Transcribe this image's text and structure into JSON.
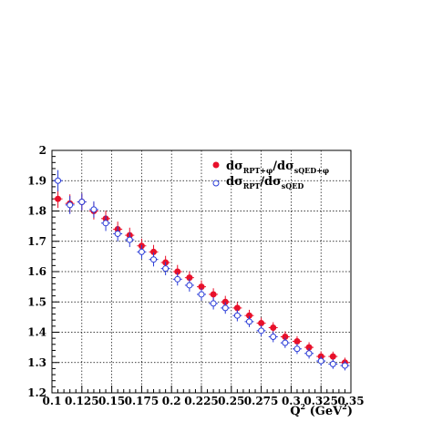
{
  "chart_data": {
    "type": "scatter",
    "x_axis": {
      "range": [
        0.1,
        0.35
      ],
      "ticks": [
        0.1,
        0.125,
        0.15,
        0.175,
        0.2,
        0.225,
        0.25,
        0.275,
        0.3,
        0.325,
        0.35
      ],
      "tick_labels": [
        "0.1",
        "0.125",
        "0.15",
        "0.175",
        "0.2",
        "0.225",
        "0.25",
        "0.275",
        "0.3",
        "0.325",
        "0.35"
      ],
      "label": {
        "base": "Q",
        "sup1": "2",
        "mid": " (GeV",
        "sup2": "2",
        "end": ")"
      }
    },
    "y_axis": {
      "range": [
        1.2,
        2.0
      ],
      "ticks": [
        1.2,
        1.3,
        1.4,
        1.5,
        1.6,
        1.7,
        1.8,
        1.9,
        2.0
      ],
      "tick_labels": [
        "1.2",
        "1.3",
        "1.4",
        "1.5",
        "1.6",
        "1.7",
        "1.8",
        "1.9",
        "2"
      ]
    },
    "grid": true,
    "legend_position": "top-right",
    "series": [
      {
        "legend": {
          "p1": "dσ",
          "s1": "RPT+φ",
          "p2": "/dσ",
          "s2": "sQED+φ"
        },
        "marker": "filled-circle",
        "color": "#e8102a",
        "errcolor": "#e8102a",
        "x": [
          0.105,
          0.115,
          0.125,
          0.135,
          0.145,
          0.155,
          0.165,
          0.175,
          0.185,
          0.195,
          0.205,
          0.215,
          0.225,
          0.235,
          0.245,
          0.255,
          0.265,
          0.275,
          0.285,
          0.295,
          0.305,
          0.315,
          0.325,
          0.335,
          0.345
        ],
        "y": [
          1.84,
          1.825,
          1.83,
          1.8,
          1.775,
          1.74,
          1.72,
          1.685,
          1.665,
          1.63,
          1.6,
          1.58,
          1.55,
          1.525,
          1.5,
          1.48,
          1.455,
          1.43,
          1.415,
          1.385,
          1.37,
          1.35,
          1.32,
          1.32,
          1.3
        ],
        "yerr": [
          0.03,
          0.03,
          0.028,
          0.028,
          0.026,
          0.025,
          0.025,
          0.024,
          0.023,
          0.022,
          0.022,
          0.021,
          0.021,
          0.02,
          0.02,
          0.019,
          0.019,
          0.018,
          0.018,
          0.018,
          0.017,
          0.017,
          0.017,
          0.016,
          0.016
        ]
      },
      {
        "legend": {
          "p1": "dσ",
          "s1": "RPT",
          "p2": "/dσ",
          "s2": "sQED"
        },
        "marker": "open-circle",
        "color": "#2a3cd8",
        "errcolor": "#2a3cd8",
        "x": [
          0.105,
          0.115,
          0.125,
          0.135,
          0.145,
          0.155,
          0.165,
          0.175,
          0.185,
          0.195,
          0.205,
          0.215,
          0.225,
          0.235,
          0.245,
          0.255,
          0.265,
          0.275,
          0.285,
          0.295,
          0.305,
          0.315,
          0.325,
          0.335,
          0.345
        ],
        "y": [
          1.9,
          1.82,
          1.83,
          1.805,
          1.76,
          1.725,
          1.705,
          1.665,
          1.64,
          1.61,
          1.575,
          1.555,
          1.525,
          1.495,
          1.48,
          1.455,
          1.435,
          1.405,
          1.385,
          1.365,
          1.345,
          1.33,
          1.305,
          1.295,
          1.29
        ],
        "yerr": [
          0.035,
          0.03,
          0.028,
          0.027,
          0.026,
          0.025,
          0.024,
          0.023,
          0.023,
          0.022,
          0.021,
          0.021,
          0.02,
          0.02,
          0.019,
          0.019,
          0.018,
          0.018,
          0.018,
          0.017,
          0.017,
          0.017,
          0.016,
          0.016,
          0.016
        ]
      }
    ]
  }
}
